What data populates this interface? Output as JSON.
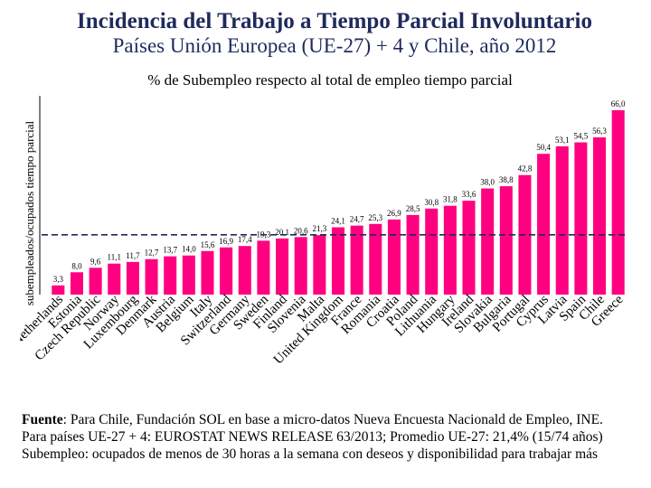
{
  "header": {
    "title": "Incidencia del Trabajo a Tiempo Parcial Involuntario",
    "subtitle": "Países Unión Europea (UE-27) + 4 y Chile, año 2012"
  },
  "colors": {
    "bar": "#ff0080",
    "average_line": "#1f2a5c",
    "title": "#1f2a5c"
  },
  "chart_data": {
    "type": "bar",
    "title": "% de Subempleo respecto al total de empleo tiempo parcial",
    "xlabel": "",
    "ylabel": "subempleados/ocupados tiempo parcial",
    "ylim": [
      0,
      70
    ],
    "grid": false,
    "legend": "none",
    "categories": [
      "Netherlands",
      "Estonia",
      "Czech Republic",
      "Norway",
      "Luxembourg",
      "Denmark",
      "Austria",
      "Belgium",
      "Italy",
      "Switzerland",
      "Germany",
      "Sweden",
      "Finland",
      "Slovenia",
      "Malta",
      "United Kingdom",
      "France",
      "Romania",
      "Croatia",
      "Poland",
      "Lithuania",
      "Hungary",
      "Ireland",
      "Slovakia",
      "Bulgaria",
      "Portugal",
      "Cyprus",
      "Latvia",
      "Spain",
      "Chile",
      "Greece"
    ],
    "values": [
      3.3,
      8.0,
      9.6,
      11.1,
      11.7,
      12.7,
      13.7,
      14.0,
      15.6,
      16.9,
      17.4,
      19.3,
      20.1,
      20.6,
      21.3,
      24.1,
      24.7,
      25.3,
      26.9,
      28.5,
      30.8,
      31.8,
      33.6,
      38.0,
      38.8,
      42.8,
      50.4,
      53.1,
      54.5,
      56.3,
      66.0
    ],
    "value_labels": [
      "3,3",
      "8,0",
      "9,6",
      "11,1",
      "11,7",
      "12,7",
      "13,7",
      "14,0",
      "15,6",
      "16,9",
      "17,4",
      "19,3",
      "20,1",
      "20,6",
      "21,3",
      "24,1",
      "24,7",
      "25,3",
      "26,9",
      "28,5",
      "30,8",
      "31,8",
      "33,6",
      "38,0",
      "38,8",
      "42,8",
      "50,4",
      "53,1",
      "54,5",
      "56,3",
      "66,0"
    ],
    "reference_line": {
      "value": 21.4,
      "style": "dashed"
    }
  },
  "footer": {
    "line1_bold": "Fuente",
    "line1": ": Para Chile, Fundación SOL en base a micro-datos Nueva Encuesta Nacionald de Empleo, INE.",
    "line2": "Para países UE-27 + 4: EUROSTAT NEWS RELEASE 63/2013; Promedio UE-27: 21,4% (15/74 años)",
    "line3": "Subempleo: ocupados de menos de 30 horas a la semana con deseos y disponibilidad para trabajar más"
  }
}
